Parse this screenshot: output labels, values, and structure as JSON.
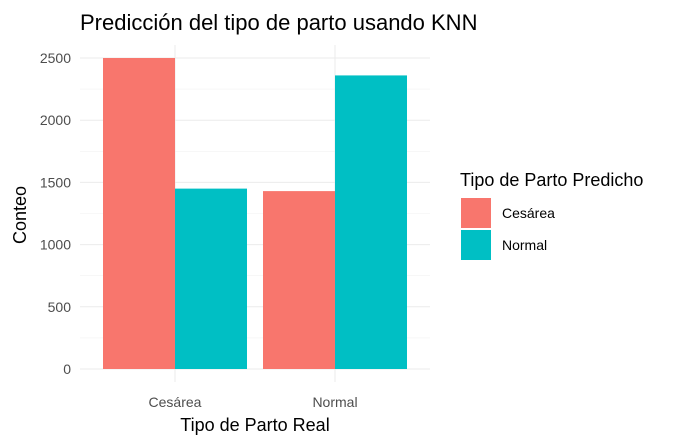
{
  "chart_data": {
    "type": "bar",
    "title": "Predicción del tipo de parto usando KNN",
    "xlabel": "Tipo de Parto Real",
    "ylabel": "Conteo",
    "categories": [
      "Cesárea",
      "Normal"
    ],
    "series": [
      {
        "name": "Cesárea",
        "color": "#F8766D",
        "values": [
          2500,
          1430
        ]
      },
      {
        "name": "Normal",
        "color": "#00BFC4",
        "values": [
          1450,
          2360
        ]
      }
    ],
    "ylim": [
      0,
      2560
    ],
    "yticks": [
      0,
      500,
      1000,
      1500,
      2000,
      2500
    ],
    "grid": true,
    "legend": {
      "title": "Tipo de Parto Predicho",
      "position": "right"
    }
  }
}
